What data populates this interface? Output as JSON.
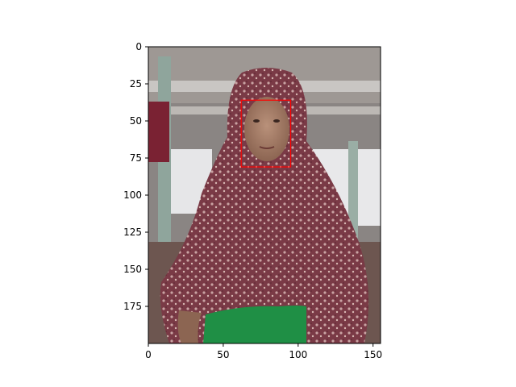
{
  "image_shape": {
    "width": 155,
    "height": 200
  },
  "x_axis": {
    "ticks": [
      0,
      50,
      100,
      150
    ]
  },
  "y_axis": {
    "ticks": [
      0,
      25,
      50,
      75,
      100,
      125,
      150,
      175
    ]
  },
  "face_box": {
    "x": 62,
    "y": 36,
    "w": 33,
    "h": 45,
    "color": "#ff0000"
  },
  "colors": {
    "background": "#ffffff",
    "frame": "#000000",
    "scarf": "#7a3a46",
    "shirt": "#1f8f45",
    "skin": "#a8836a"
  }
}
